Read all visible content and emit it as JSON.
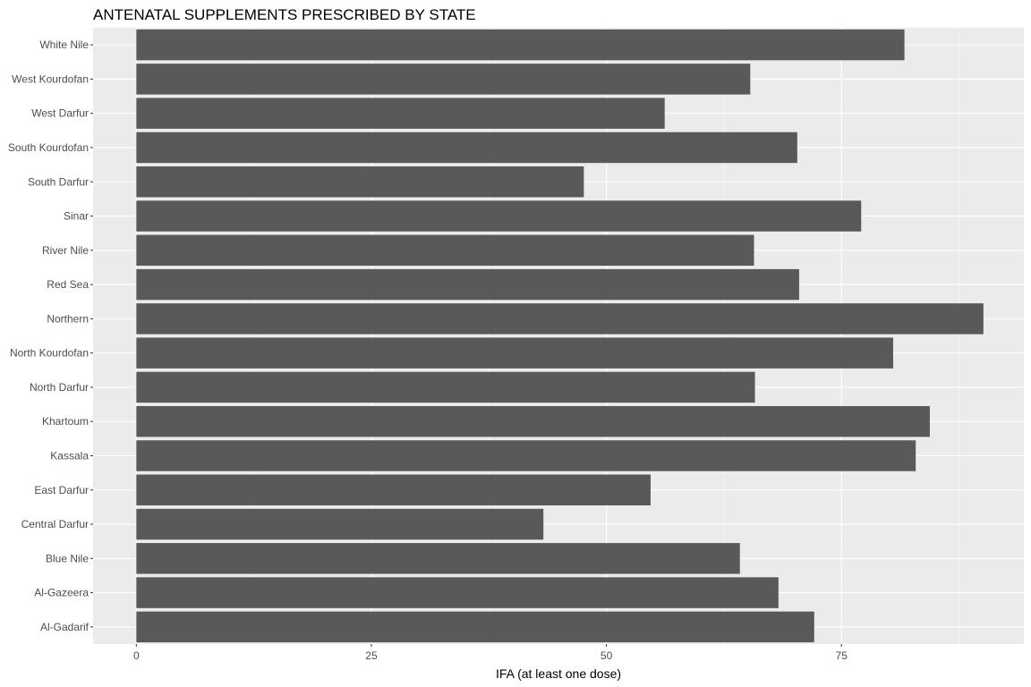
{
  "chart_data": {
    "type": "bar",
    "orientation": "horizontal",
    "title": "ANTENATAL SUPPLEMENTS PRESCRIBED BY STATE",
    "xlabel": "IFA (at least one dose)",
    "ylabel": "",
    "xlim": [
      -4.6,
      94.4
    ],
    "xticks": [
      "0",
      "25",
      "50",
      "75"
    ],
    "grid": true,
    "bar_color": "#595959",
    "panel_color": "#ebebeb",
    "categories": [
      "Al-Gadarif",
      "Al-Gazeera",
      "Blue Nile",
      "Central Darfur",
      "East Darfur",
      "Kassala",
      "Khartoum",
      "North Darfur",
      "North Kourdofan",
      "Northern",
      "Red Sea",
      "River Nile",
      "Sinar",
      "South Darfur",
      "South Kourdofan",
      "West Darfur",
      "West Kourdofan",
      "White Nile"
    ],
    "values": [
      72.1,
      68.3,
      64.2,
      43.3,
      54.7,
      82.9,
      84.4,
      65.8,
      80.5,
      90.1,
      70.5,
      65.7,
      77.1,
      47.6,
      70.3,
      56.2,
      65.3,
      81.7
    ]
  }
}
